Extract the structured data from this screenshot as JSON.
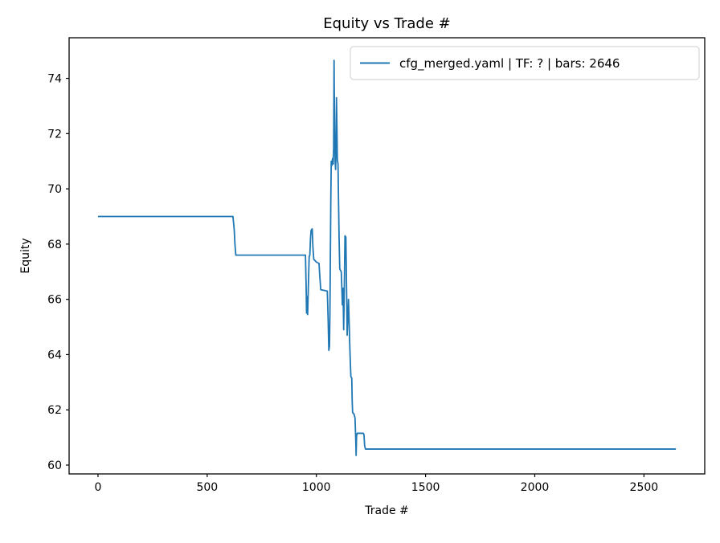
{
  "chart_data": {
    "type": "line",
    "title": "Equity vs Trade #",
    "xlabel": "Trade #",
    "ylabel": "Equity",
    "grid": false,
    "legend_position": "upper right",
    "legend": [
      {
        "label": "cfg_merged.yaml | TF: ? | bars: 2646",
        "color": "#1f77b4"
      }
    ],
    "xlim": [
      -132.3,
      2778.3
    ],
    "ylim": [
      59.68,
      75.47
    ],
    "xticks": [
      0,
      500,
      1000,
      1500,
      2000,
      2500
    ],
    "yticks": [
      60,
      62,
      64,
      66,
      68,
      70,
      72,
      74
    ],
    "colors": {
      "line": "#1f77b4",
      "spine": "#000000",
      "legend_border": "#cccccc",
      "background": "#ffffff"
    },
    "series": [
      {
        "name": "cfg_merged.yaml | TF: ? | bars: 2646",
        "color": "#1f77b4",
        "points": [
          [
            0,
            69.0
          ],
          [
            618,
            69.0
          ],
          [
            624,
            68.5
          ],
          [
            627,
            68.0
          ],
          [
            631,
            67.6
          ],
          [
            950,
            67.6
          ],
          [
            953,
            66.5
          ],
          [
            955,
            65.5
          ],
          [
            958,
            66.1
          ],
          [
            960,
            65.45
          ],
          [
            963,
            66.4
          ],
          [
            967,
            67.55
          ],
          [
            970,
            67.6
          ],
          [
            973,
            68.2
          ],
          [
            976,
            68.5
          ],
          [
            981,
            68.55
          ],
          [
            984,
            67.9
          ],
          [
            988,
            67.45
          ],
          [
            1000,
            67.35
          ],
          [
            1012,
            67.3
          ],
          [
            1016,
            66.8
          ],
          [
            1020,
            66.35
          ],
          [
            1050,
            66.3
          ],
          [
            1054,
            65.2
          ],
          [
            1057,
            64.15
          ],
          [
            1060,
            64.3
          ],
          [
            1062,
            65.5
          ],
          [
            1064,
            67.5
          ],
          [
            1066,
            69.5
          ],
          [
            1068,
            71.0
          ],
          [
            1071,
            70.85
          ],
          [
            1074,
            71.1
          ],
          [
            1077,
            70.9
          ],
          [
            1079,
            71.5
          ],
          [
            1081,
            74.65
          ],
          [
            1082,
            73.5
          ],
          [
            1084,
            71.8
          ],
          [
            1086,
            71.0
          ],
          [
            1088,
            70.7
          ],
          [
            1090,
            71.5
          ],
          [
            1092,
            73.3
          ],
          [
            1094,
            72.3
          ],
          [
            1096,
            71.05
          ],
          [
            1099,
            70.9
          ],
          [
            1101,
            69.8
          ],
          [
            1104,
            68.2
          ],
          [
            1107,
            67.1
          ],
          [
            1114,
            67.0
          ],
          [
            1117,
            66.3
          ],
          [
            1119,
            65.8
          ],
          [
            1122,
            66.4
          ],
          [
            1125,
            64.9
          ],
          [
            1128,
            66.5
          ],
          [
            1131,
            68.3
          ],
          [
            1135,
            68.25
          ],
          [
            1138,
            66.5
          ],
          [
            1141,
            64.7
          ],
          [
            1144,
            65.3
          ],
          [
            1147,
            66.0
          ],
          [
            1150,
            65.2
          ],
          [
            1153,
            64.3
          ],
          [
            1156,
            63.6
          ],
          [
            1158,
            63.2
          ],
          [
            1162,
            63.15
          ],
          [
            1164,
            62.3
          ],
          [
            1166,
            61.9
          ],
          [
            1172,
            61.85
          ],
          [
            1177,
            61.7
          ],
          [
            1180,
            61.0
          ],
          [
            1182,
            60.35
          ],
          [
            1184,
            61.05
          ],
          [
            1187,
            61.15
          ],
          [
            1215,
            61.15
          ],
          [
            1218,
            61.1
          ],
          [
            1221,
            60.7
          ],
          [
            1225,
            60.58
          ],
          [
            2646,
            60.58
          ]
        ]
      }
    ]
  }
}
